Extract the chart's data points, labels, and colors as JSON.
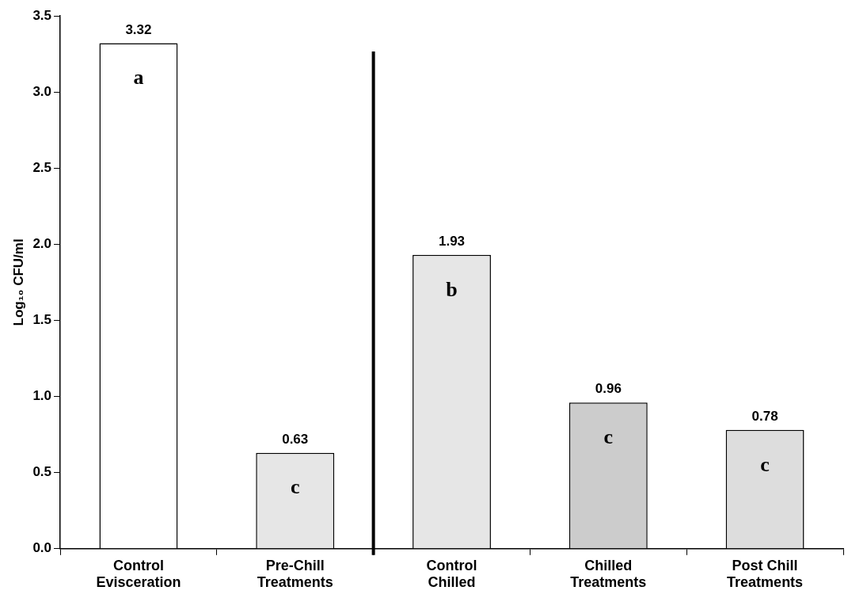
{
  "chart_data": {
    "type": "bar",
    "categories": [
      "Control\nEvisceration",
      "Pre-Chill\nTreatments",
      "Control\nChilled",
      "Chilled\nTreatments",
      "Post Chill\nTreatments"
    ],
    "values": [
      3.32,
      0.63,
      1.93,
      0.96,
      0.78
    ],
    "colors": [
      "#ffffff",
      "#e6e6e6",
      "#e6e6e6",
      "#cccccc",
      "#dddddd"
    ],
    "ylabel": "Log₁₀ CFU/ml",
    "ylim": [
      0,
      3.5
    ],
    "yticks": [
      {
        "value": 0,
        "label": "0.0"
      },
      {
        "value": 0.5,
        "label": "0.5"
      },
      {
        "value": 1,
        "label": "1.0"
      },
      {
        "value": 1.5,
        "label": "1.5"
      },
      {
        "value": 2,
        "label": "2.0"
      },
      {
        "value": 2.5,
        "label": "2.5"
      },
      {
        "value": 3,
        "label": "3.0"
      },
      {
        "value": 3.5,
        "label": "3.5"
      }
    ],
    "data_labels": true,
    "legend": false,
    "annotations": [
      "a",
      "c",
      "b",
      "c",
      "c"
    ]
  }
}
